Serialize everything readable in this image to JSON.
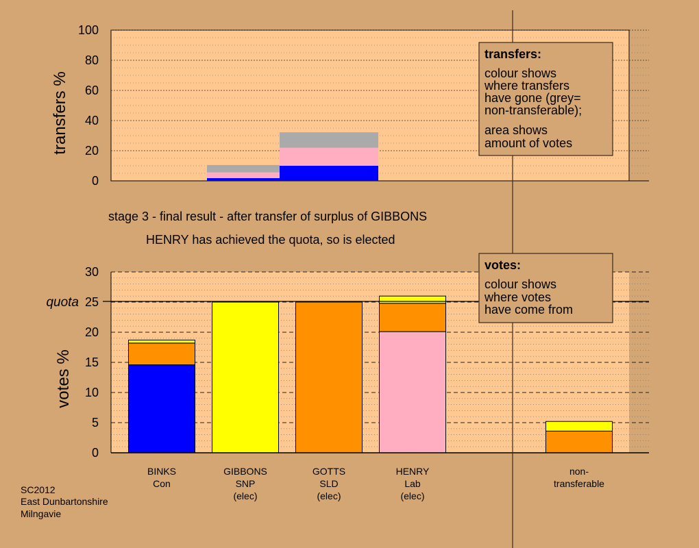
{
  "stage_text": "stage 3 - final result - after transfer of surplus of GIBBONS",
  "elected_text": "HENRY has achieved the quota, so is elected",
  "footer": [
    "SC2012",
    "East Dunbartonshire",
    "Milngavie"
  ],
  "colors": {
    "background": "#d4a673",
    "plot": "#ffc890",
    "Con": "#0000ff",
    "SNP": "#ffff00",
    "SLD": "#ff9100",
    "Lab": "#ffadc0",
    "nontransferable": "#aaaaaa"
  },
  "chart_data": [
    {
      "type": "bar",
      "ylabel": "transfers %",
      "ylim": [
        0,
        100
      ],
      "yticks": [
        "0",
        "20",
        "40",
        "60",
        "80",
        "100"
      ],
      "grid": true,
      "legend": {
        "title": "transfers:",
        "lines": [
          "colour shows",
          "where transfers",
          "have gone (grey=",
          "non-transferable);",
          "area shows",
          "amount of votes"
        ]
      },
      "bars": [
        {
          "x_from": 1,
          "x_to": 2,
          "segments": [
            {
              "party": "Con",
              "value": 1.8
            },
            {
              "party": "Lab",
              "value": 3.8
            },
            {
              "party": "nontransferable",
              "value": 4.9
            }
          ]
        },
        {
          "x_from": 2,
          "x_to": 3,
          "segments": [
            {
              "party": "Con",
              "value": 10.0
            },
            {
              "party": "Lab",
              "value": 12.0
            },
            {
              "party": "nontransferable",
              "value": 10.2
            }
          ]
        }
      ]
    },
    {
      "type": "bar",
      "ylabel": "votes %",
      "ylim": [
        0,
        30
      ],
      "yticks": [
        "0",
        "5",
        "10",
        "15",
        "20",
        "25",
        "30"
      ],
      "quota": {
        "label": "quota",
        "value": 25
      },
      "grid": true,
      "legend": {
        "title": "votes:",
        "lines": [
          "colour shows",
          "where votes",
          "have come from"
        ]
      },
      "categories": [
        {
          "label": [
            "BINKS",
            "Con"
          ],
          "segments": [
            {
              "party": "Con",
              "value": 14.6
            },
            {
              "party": "SLD",
              "value": 3.6
            },
            {
              "party": "SNP",
              "value": 0.5
            }
          ]
        },
        {
          "label": [
            "GIBBONS",
            "SNP",
            "(elec)"
          ],
          "segments": [
            {
              "party": "SNP",
              "value": 25.0
            }
          ]
        },
        {
          "label": [
            "GOTTS",
            "SLD",
            "(elec)"
          ],
          "segments": [
            {
              "party": "SLD",
              "value": 25.0
            }
          ]
        },
        {
          "label": [
            "HENRY",
            "Lab",
            "(elec)"
          ],
          "segments": [
            {
              "party": "Lab",
              "value": 20.1
            },
            {
              "party": "SLD",
              "value": 4.7
            },
            {
              "party": "SNP",
              "value": 1.2
            }
          ]
        },
        {
          "label": [
            "non-",
            "transferable"
          ],
          "segments": [
            {
              "party": "SLD",
              "value": 3.6
            },
            {
              "party": "SNP",
              "value": 1.6
            }
          ]
        }
      ]
    }
  ]
}
